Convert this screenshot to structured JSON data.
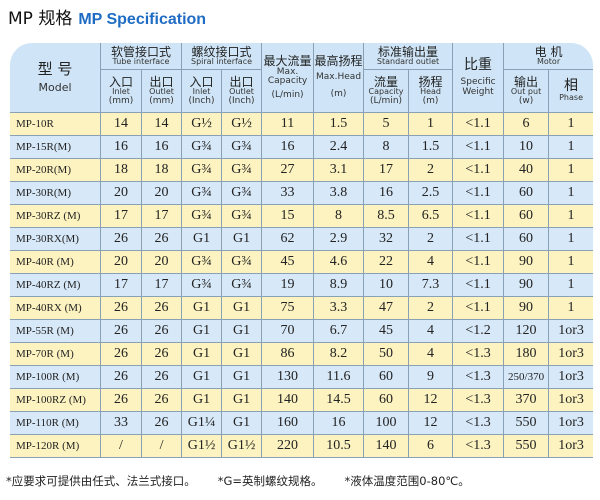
{
  "title": {
    "zh": "MP 规格",
    "en": "MP Specification"
  },
  "headers": {
    "model": {
      "zh": "型 号",
      "en": "Model"
    },
    "tube": {
      "zh": "软管接口式",
      "en": "Tube interface"
    },
    "spiral": {
      "zh": "螺纹接口式",
      "en": "Spiral interface"
    },
    "max_capacity": {
      "zh": "最大流量",
      "en": "Max. Capacity",
      "unit": "(L/min)"
    },
    "max_head": {
      "zh": "最高扬程",
      "en": "Max.Head",
      "unit": "(m)"
    },
    "standard": {
      "zh": "标准输出量",
      "en": "Standard outlet"
    },
    "weight": {
      "zh": "比重",
      "en": "Specific Weight"
    },
    "motor": {
      "zh": "电 机",
      "en": "Motor"
    },
    "tube_inlet": {
      "zh": "入口",
      "en": "Inlet",
      "unit": "(mm)"
    },
    "tube_outlet": {
      "zh": "出口",
      "en": "Outlet",
      "unit": "(mm)"
    },
    "spiral_inlet": {
      "zh": "入口",
      "en": "Inlet",
      "unit": "(Inch)"
    },
    "spiral_outlet": {
      "zh": "出口",
      "en": "Outlet",
      "unit": "(Inch)"
    },
    "std_capacity": {
      "zh": "流量",
      "en": "Capacity",
      "unit": "(L/min)"
    },
    "std_head": {
      "zh": "扬程",
      "en": "Head",
      "unit": "(m)"
    },
    "output": {
      "zh": "输出",
      "en": "Out put",
      "unit": "(w)"
    },
    "phase": {
      "zh": "相",
      "en": "Phase"
    }
  },
  "rows": [
    [
      "MP-10R",
      "14",
      "14",
      "G½",
      "G½",
      "11",
      "1.5",
      "5",
      "1",
      "<1.1",
      "6",
      "1"
    ],
    [
      "MP-15R(M)",
      "16",
      "16",
      "G¾",
      "G¾",
      "16",
      "2.4",
      "8",
      "1.5",
      "<1.1",
      "10",
      "1"
    ],
    [
      "MP-20R(M)",
      "18",
      "18",
      "G¾",
      "G¾",
      "27",
      "3.1",
      "17",
      "2",
      "<1.1",
      "40",
      "1"
    ],
    [
      "MP-30R(M)",
      "20",
      "20",
      "G¾",
      "G¾",
      "33",
      "3.8",
      "16",
      "2.5",
      "<1.1",
      "60",
      "1"
    ],
    [
      "MP-30RZ (M)",
      "17",
      "17",
      "G¾",
      "G¾",
      "15",
      "8",
      "8.5",
      "6.5",
      "<1.1",
      "60",
      "1"
    ],
    [
      "MP-30RX(M)",
      "26",
      "26",
      "G1",
      "G1",
      "62",
      "2.9",
      "32",
      "2",
      "<1.1",
      "60",
      "1"
    ],
    [
      "MP-40R (M)",
      "20",
      "20",
      "G¾",
      "G¾",
      "45",
      "4.6",
      "22",
      "4",
      "<1.1",
      "90",
      "1"
    ],
    [
      "MP-40RZ (M)",
      "17",
      "17",
      "G¾",
      "G¾",
      "19",
      "8.9",
      "10",
      "7.3",
      "<1.1",
      "90",
      "1"
    ],
    [
      "MP-40RX (M)",
      "26",
      "26",
      "G1",
      "G1",
      "75",
      "3.3",
      "47",
      "2",
      "<1.1",
      "90",
      "1"
    ],
    [
      "MP-55R (M)",
      "26",
      "26",
      "G1",
      "G1",
      "70",
      "6.7",
      "45",
      "4",
      "<1.2",
      "120",
      "1or3"
    ],
    [
      "MP-70R (M)",
      "26",
      "26",
      "G1",
      "G1",
      "86",
      "8.2",
      "50",
      "4",
      "<1.3",
      "180",
      "1or3"
    ],
    [
      "MP-100R (M)",
      "26",
      "26",
      "G1",
      "G1",
      "130",
      "11.6",
      "60",
      "9",
      "<1.3",
      "250/370",
      "1or3"
    ],
    [
      "MP-100RZ (M)",
      "26",
      "26",
      "G1",
      "G1",
      "140",
      "14.5",
      "60",
      "12",
      "<1.3",
      "370",
      "1or3"
    ],
    [
      "MP-110R (M)",
      "33",
      "26",
      "G1¼",
      "G1",
      "160",
      "16",
      "100",
      "12",
      "<1.3",
      "550",
      "1or3"
    ],
    [
      "MP-120R (M)",
      "/",
      "/",
      "G1½",
      "G1½",
      "220",
      "10.5",
      "140",
      "6",
      "<1.3",
      "550",
      "1or3"
    ]
  ],
  "footnotes": [
    "*应要求可提供由任式、法兰式接口。",
    "*G=英制螺纹规格。",
    "*液体温度范围0-80℃。"
  ],
  "colors": {
    "title_accent": "#1f6cc4",
    "header_bg": "#cfe5f7",
    "row_yellow": "#fcf3c0",
    "row_blue": "#d7e8f8"
  }
}
